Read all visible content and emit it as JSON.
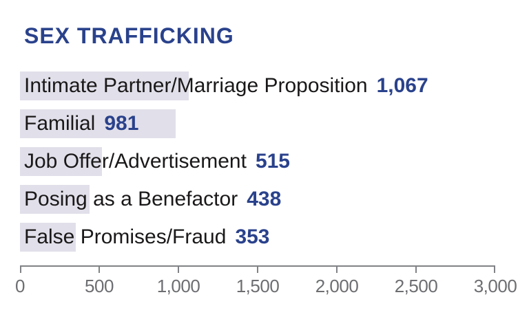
{
  "title": "SEX TRAFFICKING",
  "chart_data": {
    "type": "bar",
    "orientation": "horizontal",
    "title": "SEX TRAFFICKING",
    "categories": [
      "Intimate Partner/Marriage Proposition",
      "Familial",
      "Job Offer/Advertisement",
      "Posing as a Benefactor",
      "False Promises/Fraud"
    ],
    "values": [
      1067,
      981,
      515,
      438,
      353
    ],
    "value_labels": [
      "1,067",
      "981",
      "515",
      "438",
      "353"
    ],
    "xlabel": "",
    "ylabel": "",
    "xlim": [
      0,
      3000
    ],
    "x_ticks": [
      0,
      500,
      1000,
      1500,
      2000,
      2500,
      3000
    ],
    "x_tick_labels": [
      "0",
      "500",
      "1,000",
      "1,500",
      "2,000",
      "2,500",
      "3,000"
    ],
    "grid": false,
    "legend": false
  },
  "colors": {
    "background": "#FFFFFF",
    "accent_navy": "#2A428C",
    "bar_fill": "#E1DFE9",
    "label_text": "#1A1818",
    "axis_line": "#808285",
    "axis_label": "#6D6E71"
  }
}
